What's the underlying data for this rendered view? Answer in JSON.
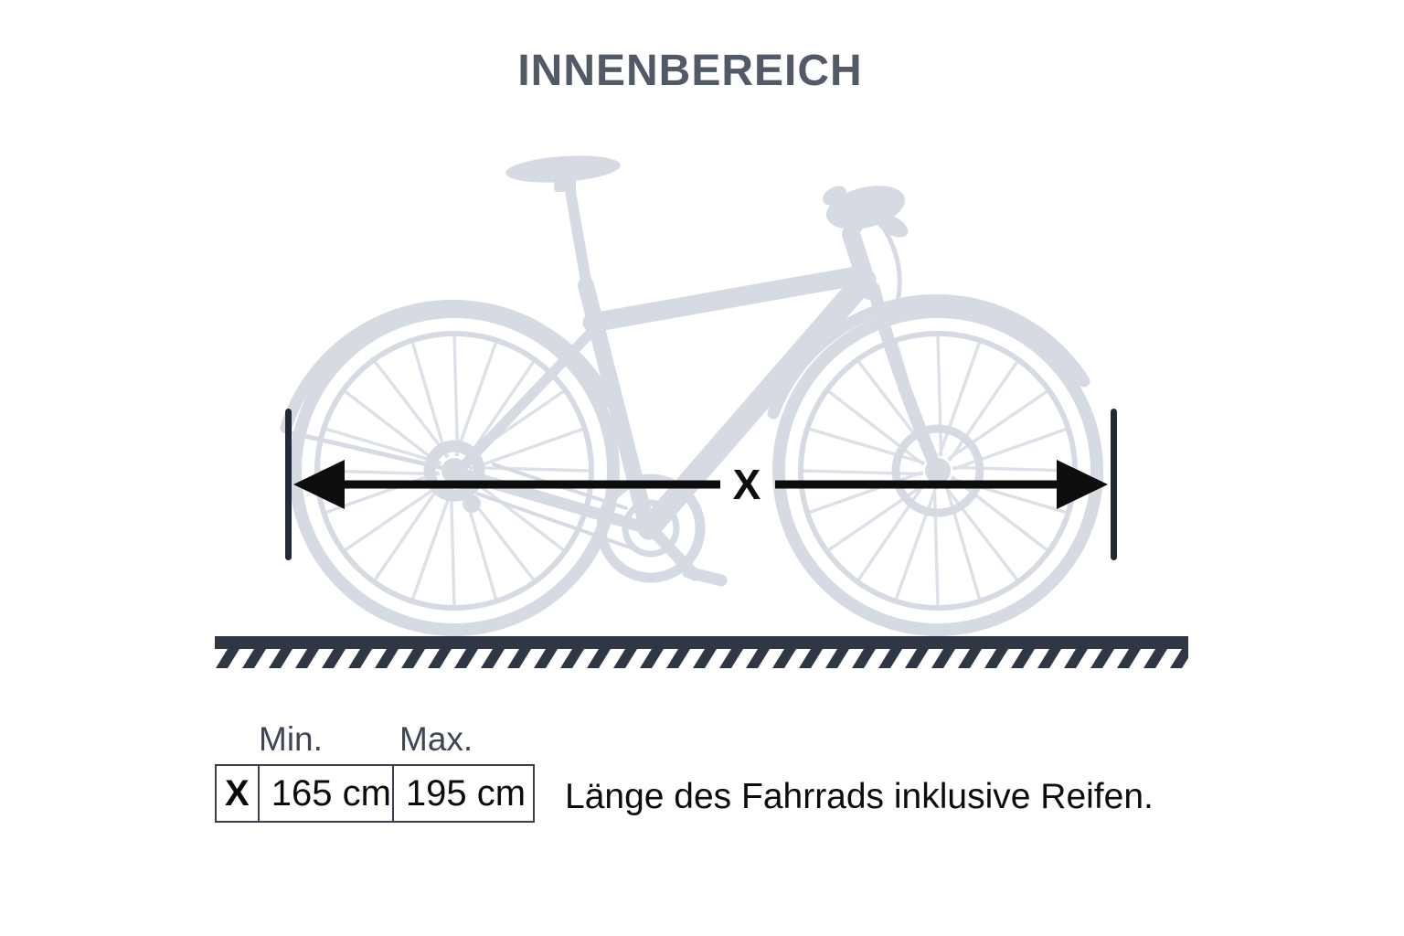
{
  "page": {
    "title": "INNENBEREICH"
  },
  "diagram": {
    "bike_icon": "bicycle-side-silhouette-icon",
    "ground_icon": "hatched-ground-line",
    "dimension": {
      "label": "X"
    }
  },
  "spec_table": {
    "col_headers": {
      "min": "Min.",
      "max": "Max."
    },
    "rows": [
      {
        "label": "X",
        "min": "165 cm",
        "max": "195 cm",
        "description": "Länge des Fahrrads inklusive Reifen."
      }
    ]
  },
  "colors": {
    "background": "#ffffff",
    "ink": "#0d0d0d",
    "ground_slate": "#2f3644",
    "marker_bar": "#232936",
    "bike_silhouette": "#d6dbe3",
    "title_text": "#525a68",
    "header_text": "#3e4553"
  }
}
